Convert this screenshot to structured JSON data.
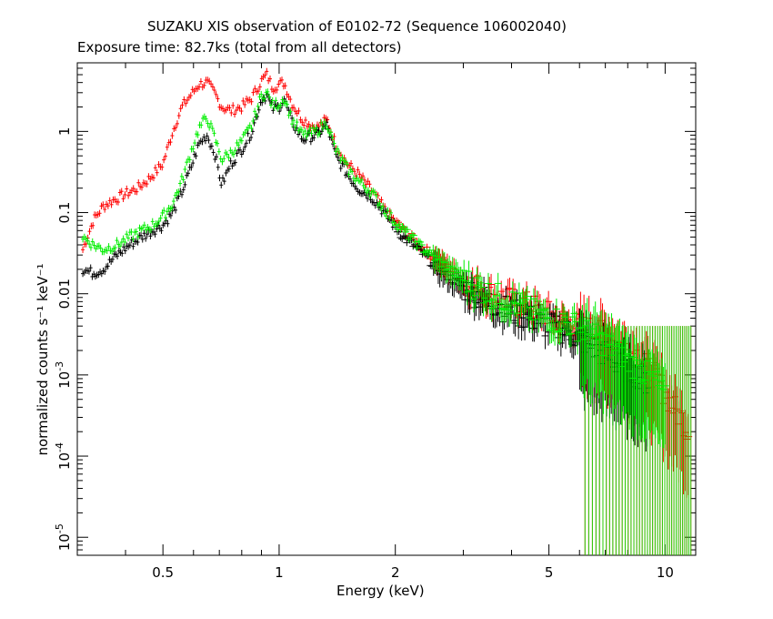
{
  "chart_data": {
    "type": "scatter",
    "title": "SUZAKU XIS observation of E0102-72 (Sequence 106002040)",
    "subtitle": "Exposure time: 82.7ks (total from all detectors)",
    "xlabel": "Energy (keV)",
    "ylabel": "normalized counts s⁻¹ keV⁻¹",
    "x_scale": "log",
    "y_scale": "log",
    "xlim": [
      0.3,
      12
    ],
    "ylim": [
      6e-06,
      7
    ],
    "x_ticks": [
      {
        "value": 0.5,
        "label": "0.5"
      },
      {
        "value": 1,
        "label": "1"
      },
      {
        "value": 2,
        "label": "2"
      },
      {
        "value": 5,
        "label": "5"
      },
      {
        "value": 10,
        "label": "10"
      }
    ],
    "y_ticks": [
      {
        "value": 1,
        "base": "1",
        "exp": ""
      },
      {
        "value": 0.1,
        "base": "0.1",
        "exp": ""
      },
      {
        "value": 0.01,
        "base": "0.01",
        "exp": ""
      },
      {
        "value": 0.001,
        "base": "10",
        "exp": "-3"
      },
      {
        "value": 0.0001,
        "base": "10",
        "exp": "-4"
      },
      {
        "value": 1e-05,
        "base": "10",
        "exp": "-5"
      }
    ],
    "grid": false,
    "series": [
      {
        "color": "#ff0000",
        "points": [
          [
            0.31,
            0.035
          ],
          [
            0.33,
            0.08
          ],
          [
            0.35,
            0.12
          ],
          [
            0.37,
            0.14
          ],
          [
            0.4,
            0.17
          ],
          [
            0.43,
            0.2
          ],
          [
            0.46,
            0.26
          ],
          [
            0.5,
            0.4
          ],
          [
            0.53,
            1.0
          ],
          [
            0.56,
            2.0
          ],
          [
            0.59,
            2.8
          ],
          [
            0.62,
            3.8
          ],
          [
            0.65,
            4.0
          ],
          [
            0.68,
            3.0
          ],
          [
            0.71,
            2.0
          ],
          [
            0.75,
            1.8
          ],
          [
            0.8,
            2.0
          ],
          [
            0.85,
            2.6
          ],
          [
            0.9,
            4.2
          ],
          [
            0.93,
            5.0
          ],
          [
            0.96,
            3.5
          ],
          [
            1.0,
            3.8
          ],
          [
            1.03,
            4.0
          ],
          [
            1.08,
            2.2
          ],
          [
            1.15,
            1.4
          ],
          [
            1.25,
            1.1
          ],
          [
            1.33,
            1.4
          ],
          [
            1.4,
            0.7
          ],
          [
            1.5,
            0.4
          ],
          [
            1.6,
            0.3
          ],
          [
            1.75,
            0.18
          ],
          [
            1.9,
            0.1
          ],
          [
            2.1,
            0.06
          ],
          [
            2.3,
            0.04
          ],
          [
            2.6,
            0.025
          ],
          [
            3.0,
            0.015
          ],
          [
            3.5,
            0.01
          ],
          [
            4.0,
            0.008
          ],
          [
            4.5,
            0.007
          ],
          [
            5.0,
            0.0055
          ],
          [
            5.5,
            0.0045
          ],
          [
            6.0,
            0.004
          ],
          [
            6.5,
            0.0035
          ],
          [
            7.0,
            0.003
          ],
          [
            7.5,
            0.0025
          ],
          [
            8.0,
            0.002
          ],
          [
            8.5,
            0.0018
          ],
          [
            9.0,
            0.0012
          ],
          [
            9.5,
            0.0009
          ],
          [
            10.0,
            0.0006
          ],
          [
            10.5,
            0.0004
          ],
          [
            11.0,
            0.0003
          ],
          [
            11.5,
            0.0002
          ]
        ]
      },
      {
        "color": "#000000",
        "points": [
          [
            0.31,
            0.02
          ],
          [
            0.33,
            0.018
          ],
          [
            0.35,
            0.02
          ],
          [
            0.38,
            0.03
          ],
          [
            0.41,
            0.04
          ],
          [
            0.44,
            0.05
          ],
          [
            0.47,
            0.06
          ],
          [
            0.5,
            0.07
          ],
          [
            0.53,
            0.1
          ],
          [
            0.56,
            0.18
          ],
          [
            0.59,
            0.35
          ],
          [
            0.62,
            0.7
          ],
          [
            0.65,
            0.9
          ],
          [
            0.68,
            0.55
          ],
          [
            0.71,
            0.22
          ],
          [
            0.75,
            0.4
          ],
          [
            0.8,
            0.6
          ],
          [
            0.85,
            1.0
          ],
          [
            0.9,
            2.5
          ],
          [
            0.93,
            2.8
          ],
          [
            0.96,
            1.9
          ],
          [
            1.0,
            2.0
          ],
          [
            1.03,
            2.5
          ],
          [
            1.08,
            1.3
          ],
          [
            1.15,
            0.8
          ],
          [
            1.25,
            0.9
          ],
          [
            1.33,
            1.2
          ],
          [
            1.4,
            0.5
          ],
          [
            1.5,
            0.3
          ],
          [
            1.6,
            0.2
          ],
          [
            1.75,
            0.15
          ],
          [
            1.9,
            0.09
          ],
          [
            2.1,
            0.05
          ],
          [
            2.3,
            0.035
          ],
          [
            2.6,
            0.02
          ],
          [
            3.0,
            0.012
          ],
          [
            3.5,
            0.008
          ],
          [
            4.0,
            0.006
          ],
          [
            4.5,
            0.005
          ],
          [
            5.0,
            0.004
          ],
          [
            5.5,
            0.0035
          ],
          [
            6.0,
            0.0028
          ],
          [
            6.5,
            0.0022
          ],
          [
            7.0,
            0.0018
          ],
          [
            7.5,
            0.0014
          ],
          [
            8.0,
            0.0012
          ],
          [
            8.5,
            0.001
          ],
          [
            9.0,
            0.0008
          ]
        ]
      },
      {
        "color": "#00ee00",
        "points": [
          [
            0.31,
            0.05
          ],
          [
            0.33,
            0.04
          ],
          [
            0.35,
            0.035
          ],
          [
            0.38,
            0.04
          ],
          [
            0.41,
            0.05
          ],
          [
            0.44,
            0.06
          ],
          [
            0.47,
            0.07
          ],
          [
            0.5,
            0.09
          ],
          [
            0.53,
            0.13
          ],
          [
            0.56,
            0.25
          ],
          [
            0.59,
            0.55
          ],
          [
            0.62,
            1.1
          ],
          [
            0.65,
            1.5
          ],
          [
            0.68,
            0.85
          ],
          [
            0.71,
            0.45
          ],
          [
            0.75,
            0.55
          ],
          [
            0.8,
            0.75
          ],
          [
            0.85,
            1.2
          ],
          [
            0.9,
            2.8
          ],
          [
            0.93,
            3.0
          ],
          [
            0.96,
            2.1
          ],
          [
            1.0,
            2.2
          ],
          [
            1.03,
            2.6
          ],
          [
            1.08,
            1.4
          ],
          [
            1.15,
            0.9
          ],
          [
            1.25,
            1.0
          ],
          [
            1.33,
            1.3
          ],
          [
            1.4,
            0.6
          ],
          [
            1.5,
            0.35
          ],
          [
            1.6,
            0.25
          ],
          [
            1.75,
            0.17
          ],
          [
            1.9,
            0.1
          ],
          [
            2.1,
            0.06
          ],
          [
            2.3,
            0.04
          ],
          [
            2.6,
            0.025
          ],
          [
            3.0,
            0.015
          ],
          [
            3.5,
            0.01
          ],
          [
            4.0,
            0.008
          ],
          [
            4.5,
            0.006
          ],
          [
            5.0,
            0.005
          ],
          [
            5.5,
            0.0045
          ],
          [
            6.0,
            0.0038
          ],
          [
            6.5,
            0.003
          ],
          [
            7.0,
            0.0025
          ],
          [
            7.5,
            0.002
          ],
          [
            8.0,
            0.0015
          ],
          [
            8.5,
            0.0012
          ],
          [
            9.0,
            0.001
          ],
          [
            9.5,
            0.0008
          ],
          [
            10.0,
            0.0005
          ]
        ]
      }
    ]
  }
}
